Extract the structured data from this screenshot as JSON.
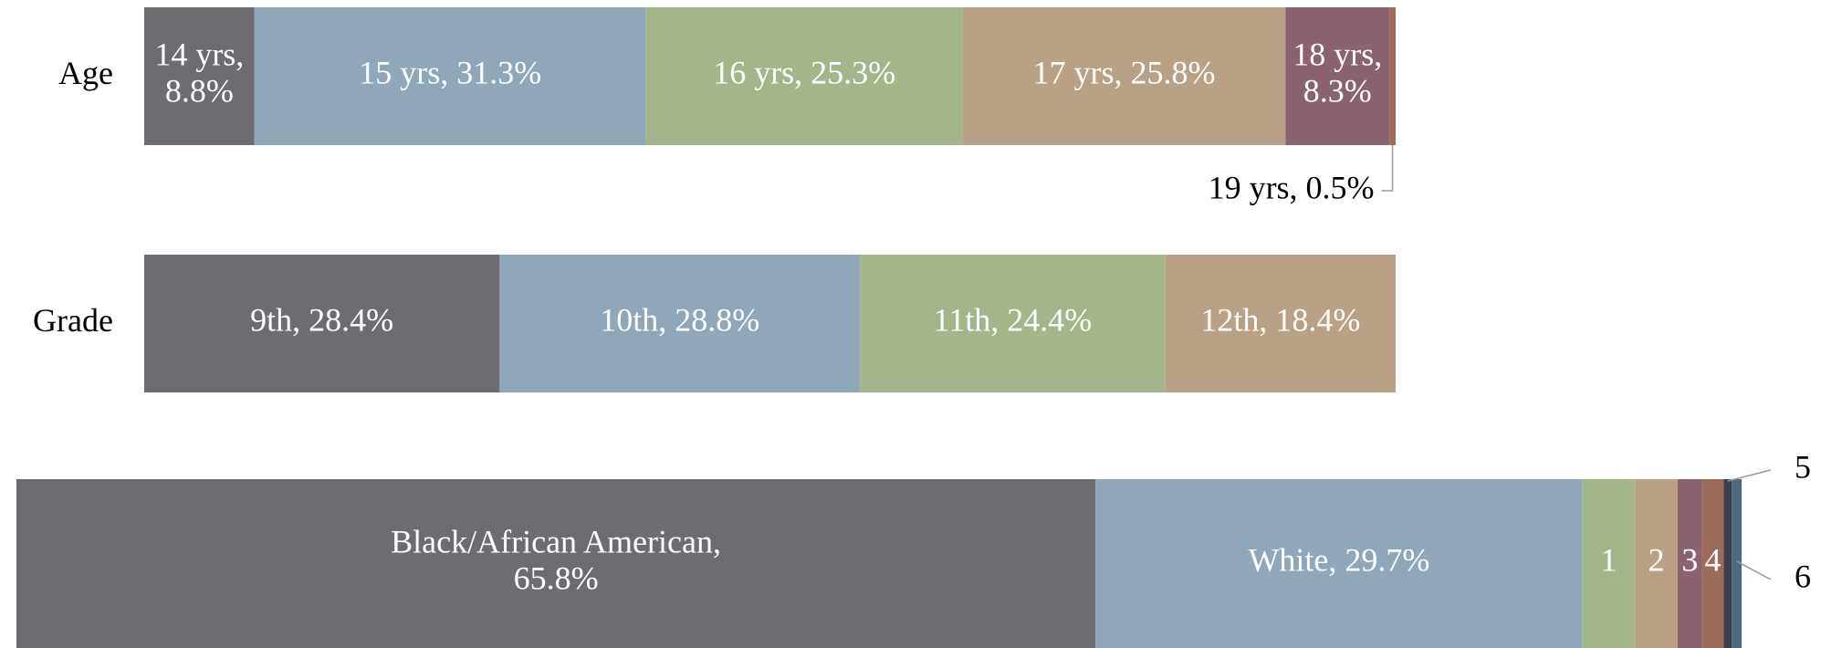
{
  "chart_data": [
    {
      "type": "bar",
      "orientation": "horizontal",
      "stacked": true,
      "categories": [
        "Age"
      ],
      "xlim": [
        0,
        100
      ],
      "series": [
        {
          "name": "14 yrs, 8.8%",
          "color": "#6e6c71",
          "values": [
            8.8
          ]
        },
        {
          "name": "15 yrs, 31.3%",
          "color": "#8fa7b8",
          "values": [
            31.3
          ]
        },
        {
          "name": "16 yrs, 25.3%",
          "color": "#a4b58a",
          "values": [
            25.3
          ]
        },
        {
          "name": "17 yrs, 25.8%",
          "color": "#b9a187",
          "values": [
            25.8
          ]
        },
        {
          "name": "18 yrs, 8.3%",
          "color": "#8b6272",
          "values": [
            8.3
          ]
        },
        {
          "name": "19 yrs, 0.5%",
          "color": "#9c6b5a",
          "values": [
            0.5
          ]
        }
      ]
    },
    {
      "type": "bar",
      "orientation": "horizontal",
      "stacked": true,
      "categories": [
        "Grade"
      ],
      "xlim": [
        0,
        100
      ],
      "series": [
        {
          "name": "9th, 28.4%",
          "color": "#6e6c71",
          "values": [
            28.4
          ]
        },
        {
          "name": "10th, 28.8%",
          "color": "#8fa7b8",
          "values": [
            28.8
          ]
        },
        {
          "name": "11th, 24.4%",
          "color": "#a4b58a",
          "values": [
            24.4
          ]
        },
        {
          "name": "12th, 18.4%",
          "color": "#b9a187",
          "values": [
            18.4
          ]
        }
      ]
    },
    {
      "type": "bar",
      "orientation": "horizontal",
      "stacked": true,
      "categories": [
        null
      ],
      "xlim": [
        0,
        105.2
      ],
      "series": [
        {
          "name": "Black/African American, 65.8%",
          "color": "#6e6c71",
          "values": [
            65.8
          ]
        },
        {
          "name": "White, 29.7%",
          "color": "#8fa7b8",
          "values": [
            29.7
          ]
        },
        {
          "name": "1",
          "color": "#a4b58a",
          "values": [
            3.2
          ]
        },
        {
          "name": "2",
          "color": "#b9a187",
          "values": [
            2.6
          ]
        },
        {
          "name": "3",
          "color": "#8b6272",
          "values": [
            1.5
          ]
        },
        {
          "name": "4",
          "color": "#9c6b5a",
          "values": [
            1.3
          ]
        },
        {
          "name": "5",
          "color": "#3a3f46",
          "values": [
            0.5
          ]
        },
        {
          "name": "6",
          "color": "#4b6a80",
          "values": [
            0.6
          ]
        }
      ]
    }
  ]
}
